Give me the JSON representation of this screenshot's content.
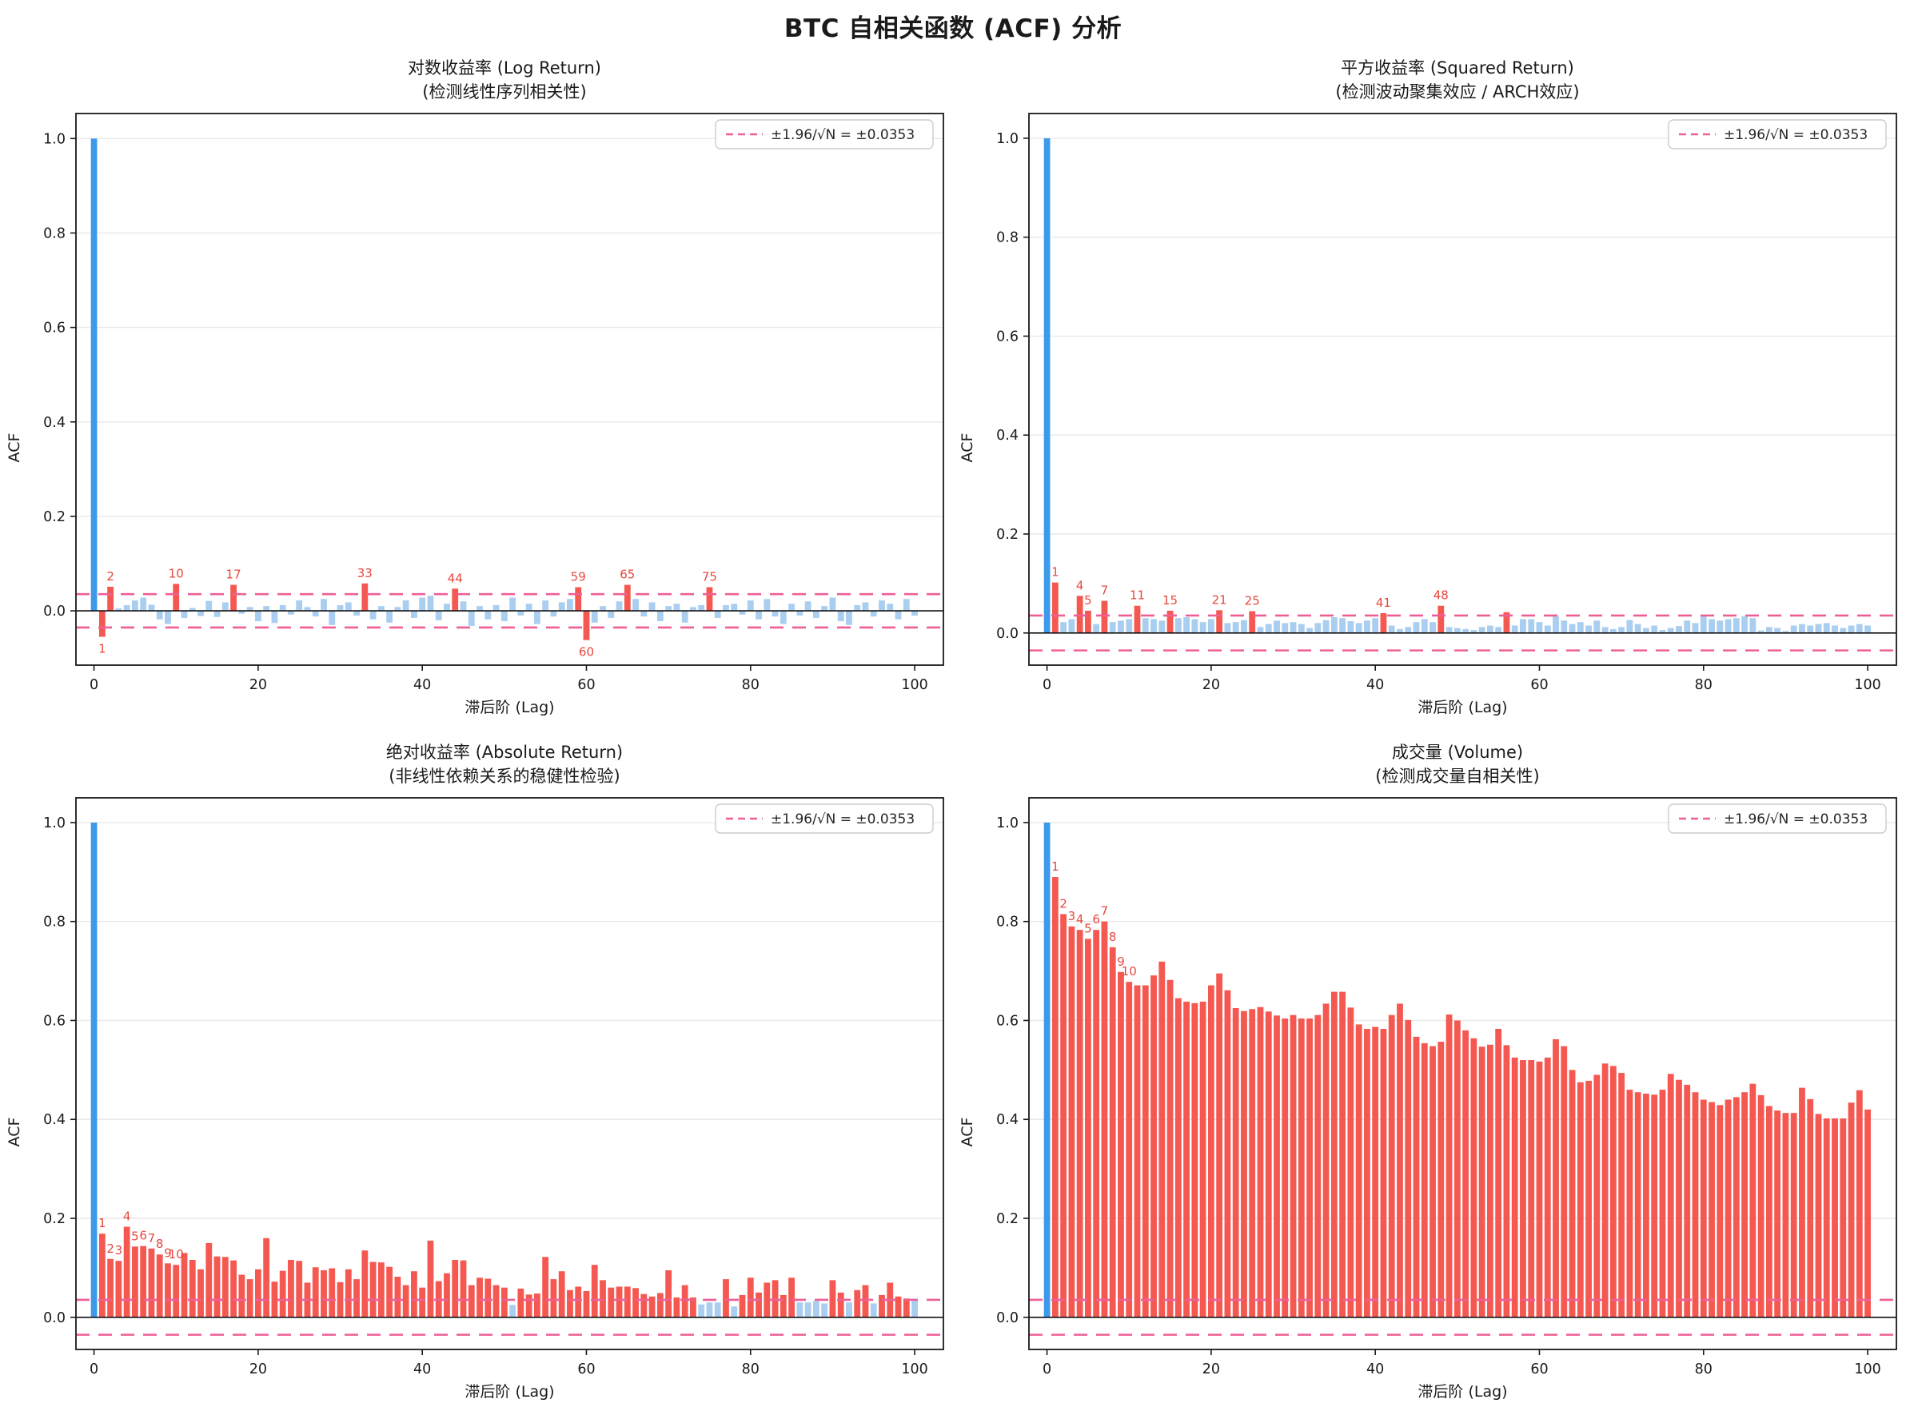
{
  "page": {
    "title": "BTC 自相关函数 (ACF) 分析"
  },
  "axis": {
    "xlabel": "滞后阶 (Lag)",
    "ylabel": "ACF",
    "xticks": [
      0,
      20,
      40,
      60,
      80,
      100
    ],
    "yticks": [
      0.0,
      0.2,
      0.4,
      0.6,
      0.8,
      1.0
    ]
  },
  "legend": {
    "label": "±1.96/√N = ±0.0353"
  },
  "colors": {
    "lag0_bar": "#3d99e9",
    "significant_bar": "#f45850",
    "insignificant_bar": "#a9cef0",
    "confidence_line": "#ee5f97",
    "label_text": "#e8473f",
    "grid": "#e9e9e9",
    "spine": "#1a1a1a"
  },
  "chart_data": [
    {
      "type": "bar",
      "title": "对数收益率 (Log Return)",
      "subtitle": "(检测线性序列相关性)",
      "xlabel": "滞后阶 (Lag)",
      "ylabel": "ACF",
      "significance_threshold": 0.0353,
      "lag_start": 0,
      "labeled_lags": [
        1,
        2,
        10,
        17,
        33,
        44,
        59,
        60,
        65,
        75
      ],
      "ylim": [
        -0.115,
        1.053
      ],
      "xlim": [
        -2.2,
        103.5
      ],
      "values": [
        1.0,
        -0.055,
        0.051,
        0.005,
        0.012,
        0.022,
        0.028,
        0.013,
        -0.018,
        -0.028,
        0.057,
        -0.015,
        0.006,
        -0.011,
        0.021,
        -0.013,
        0.018,
        0.055,
        -0.006,
        0.008,
        -0.022,
        0.01,
        -0.026,
        0.012,
        -0.008,
        0.022,
        0.008,
        -0.012,
        0.025,
        -0.03,
        0.012,
        0.018,
        -0.01,
        0.058,
        -0.018,
        0.01,
        -0.025,
        0.008,
        0.022,
        -0.015,
        0.028,
        0.032,
        -0.02,
        0.015,
        0.047,
        0.02,
        -0.032,
        0.01,
        -0.018,
        0.012,
        -0.022,
        0.028,
        -0.01,
        0.015,
        -0.028,
        0.022,
        -0.012,
        0.018,
        0.025,
        0.05,
        -0.062,
        -0.025,
        0.01,
        -0.015,
        0.02,
        0.055,
        0.025,
        -0.012,
        0.018,
        -0.022,
        0.01,
        0.015,
        -0.025,
        0.008,
        0.012,
        0.05,
        -0.015,
        0.012,
        0.015,
        -0.008,
        0.022,
        -0.018,
        0.025,
        -0.012,
        -0.028,
        0.015,
        -0.01,
        0.02,
        -0.015,
        0.01,
        0.028,
        -0.022,
        -0.03,
        0.012,
        0.018,
        -0.012,
        0.022,
        0.015,
        -0.018,
        0.025,
        -0.01
      ]
    },
    {
      "type": "bar",
      "title": "平方收益率 (Squared Return)",
      "subtitle": "(检测波动聚集效应 / ARCH效应)",
      "xlabel": "滞后阶 (Lag)",
      "ylabel": "ACF",
      "significance_threshold": 0.0353,
      "lag_start": 0,
      "labeled_lags": [
        1,
        4,
        5,
        7,
        11,
        15,
        21,
        25,
        41,
        48
      ],
      "ylim": [
        -0.065,
        1.05
      ],
      "xlim": [
        -2.2,
        103.5
      ],
      "values": [
        1.0,
        0.102,
        0.022,
        0.028,
        0.075,
        0.045,
        0.018,
        0.065,
        0.022,
        0.025,
        0.028,
        0.055,
        0.03,
        0.028,
        0.025,
        0.045,
        0.03,
        0.032,
        0.028,
        0.022,
        0.028,
        0.046,
        0.02,
        0.022,
        0.026,
        0.044,
        0.012,
        0.018,
        0.025,
        0.02,
        0.022,
        0.018,
        0.01,
        0.02,
        0.026,
        0.032,
        0.03,
        0.024,
        0.02,
        0.025,
        0.03,
        0.04,
        0.015,
        0.008,
        0.012,
        0.022,
        0.028,
        0.022,
        0.055,
        0.012,
        0.01,
        0.008,
        0.006,
        0.012,
        0.015,
        0.012,
        0.042,
        0.015,
        0.028,
        0.028,
        0.022,
        0.015,
        0.034,
        0.025,
        0.018,
        0.022,
        0.015,
        0.025,
        0.012,
        0.008,
        0.012,
        0.026,
        0.018,
        0.01,
        0.015,
        0.006,
        0.01,
        0.014,
        0.025,
        0.02,
        0.034,
        0.028,
        0.025,
        0.028,
        0.03,
        0.034,
        0.03,
        0.005,
        0.012,
        0.01,
        0.004,
        0.015,
        0.018,
        0.015,
        0.018,
        0.02,
        0.015,
        0.01,
        0.015,
        0.018,
        0.015
      ]
    },
    {
      "type": "bar",
      "title": "绝对收益率 (Absolute Return)",
      "subtitle": "(非线性依赖关系的稳健性检验)",
      "xlabel": "滞后阶 (Lag)",
      "ylabel": "ACF",
      "significance_threshold": 0.0353,
      "lag_start": 0,
      "labeled_lags": [
        1,
        2,
        3,
        4,
        5,
        6,
        7,
        8,
        9,
        10
      ],
      "ylim": [
        -0.065,
        1.05
      ],
      "xlim": [
        -2.2,
        103.5
      ],
      "values": [
        1.0,
        0.169,
        0.118,
        0.114,
        0.183,
        0.143,
        0.144,
        0.139,
        0.127,
        0.109,
        0.106,
        0.13,
        0.116,
        0.097,
        0.15,
        0.123,
        0.122,
        0.115,
        0.086,
        0.077,
        0.097,
        0.16,
        0.072,
        0.094,
        0.116,
        0.114,
        0.07,
        0.101,
        0.095,
        0.099,
        0.071,
        0.097,
        0.077,
        0.135,
        0.112,
        0.111,
        0.102,
        0.082,
        0.065,
        0.093,
        0.06,
        0.155,
        0.073,
        0.089,
        0.116,
        0.115,
        0.065,
        0.08,
        0.078,
        0.065,
        0.06,
        0.025,
        0.058,
        0.046,
        0.048,
        0.122,
        0.077,
        0.093,
        0.055,
        0.062,
        0.053,
        0.106,
        0.075,
        0.06,
        0.062,
        0.062,
        0.059,
        0.047,
        0.042,
        0.049,
        0.095,
        0.04,
        0.065,
        0.04,
        0.026,
        0.03,
        0.03,
        0.077,
        0.022,
        0.045,
        0.08,
        0.05,
        0.07,
        0.075,
        0.045,
        0.08,
        0.03,
        0.03,
        0.033,
        0.028,
        0.075,
        0.05,
        0.03,
        0.055,
        0.065,
        0.028,
        0.045,
        0.07,
        0.042,
        0.038,
        0.034
      ]
    },
    {
      "type": "bar",
      "title": "成交量 (Volume)",
      "subtitle": "(检测成交量自相关性)",
      "xlabel": "滞后阶 (Lag)",
      "ylabel": "ACF",
      "significance_threshold": 0.0353,
      "lag_start": 0,
      "labeled_lags": [
        1,
        2,
        3,
        4,
        5,
        6,
        7,
        8,
        9,
        10
      ],
      "ylim": [
        -0.065,
        1.05
      ],
      "xlim": [
        -2.2,
        103.5
      ],
      "values": [
        1.0,
        0.89,
        0.815,
        0.79,
        0.783,
        0.765,
        0.783,
        0.8,
        0.748,
        0.698,
        0.678,
        0.671,
        0.671,
        0.691,
        0.719,
        0.682,
        0.645,
        0.638,
        0.635,
        0.638,
        0.671,
        0.695,
        0.661,
        0.625,
        0.619,
        0.623,
        0.627,
        0.618,
        0.61,
        0.604,
        0.611,
        0.604,
        0.604,
        0.611,
        0.634,
        0.658,
        0.658,
        0.626,
        0.592,
        0.583,
        0.587,
        0.583,
        0.611,
        0.634,
        0.601,
        0.567,
        0.554,
        0.548,
        0.557,
        0.612,
        0.6,
        0.58,
        0.564,
        0.547,
        0.551,
        0.583,
        0.55,
        0.525,
        0.52,
        0.52,
        0.517,
        0.525,
        0.562,
        0.548,
        0.5,
        0.475,
        0.478,
        0.49,
        0.513,
        0.508,
        0.494,
        0.46,
        0.455,
        0.452,
        0.45,
        0.46,
        0.492,
        0.48,
        0.47,
        0.455,
        0.44,
        0.435,
        0.429,
        0.44,
        0.445,
        0.455,
        0.472,
        0.449,
        0.427,
        0.418,
        0.413,
        0.413,
        0.464,
        0.441,
        0.411,
        0.402,
        0.402,
        0.402,
        0.434,
        0.459,
        0.42
      ]
    }
  ]
}
